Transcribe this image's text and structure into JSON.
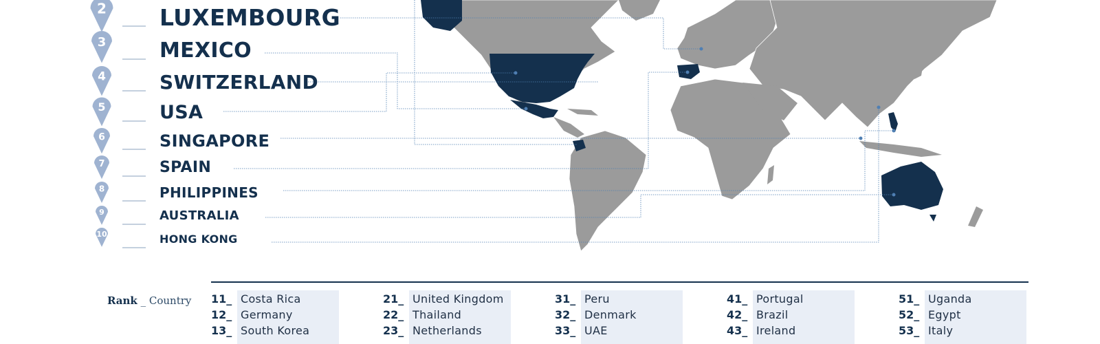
{
  "top_countries": [
    {
      "rank": "2",
      "name": "LUXEMBOURG",
      "size": 33
    },
    {
      "rank": "3",
      "name": "MEXICO",
      "size": 30
    },
    {
      "rank": "4",
      "name": "SWITZERLAND",
      "size": 28
    },
    {
      "rank": "5",
      "name": "USA",
      "size": 27
    },
    {
      "rank": "6",
      "name": "SINGAPORE",
      "size": 24
    },
    {
      "rank": "7",
      "name": "SPAIN",
      "size": 22
    },
    {
      "rank": "8",
      "name": "PHILIPPINES",
      "size": 20
    },
    {
      "rank": "9",
      "name": "AUSTRALIA",
      "size": 18
    },
    {
      "rank": "10",
      "name": "HONG KONG",
      "size": 16
    }
  ],
  "legend": {
    "rank_word": "Rank",
    "separator": "_",
    "country_word": "Country"
  },
  "table": [
    [
      {
        "rank": "11",
        "name": "Costa Rica"
      },
      {
        "rank": "12",
        "name": "Germany"
      },
      {
        "rank": "13",
        "name": "South Korea"
      }
    ],
    [
      {
        "rank": "21",
        "name": "United Kingdom"
      },
      {
        "rank": "22",
        "name": "Thailand"
      },
      {
        "rank": "23",
        "name": "Netherlands"
      }
    ],
    [
      {
        "rank": "31",
        "name": "Peru"
      },
      {
        "rank": "32",
        "name": "Denmark"
      },
      {
        "rank": "33",
        "name": "UAE"
      }
    ],
    [
      {
        "rank": "41",
        "name": "Portugal"
      },
      {
        "rank": "42",
        "name": "Brazil"
      },
      {
        "rank": "43",
        "name": "Ireland"
      }
    ],
    [
      {
        "rank": "51",
        "name": "Uganda"
      },
      {
        "rank": "52",
        "name": "Egypt"
      },
      {
        "rank": "53",
        "name": "Italy"
      }
    ]
  ],
  "colors": {
    "highlight": "#14304d",
    "land": "#9b9b9b",
    "pin": "#9fb3d1",
    "line": "#4f7fb3",
    "table_bg": "#e9eef6"
  }
}
